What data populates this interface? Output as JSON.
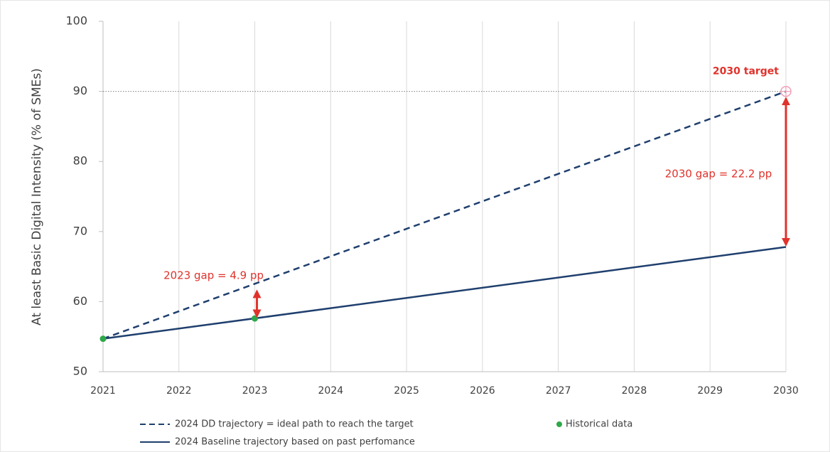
{
  "chart_data": {
    "type": "line",
    "y_label": "At least Basic Digital Intensity (% of SMEs)",
    "xlim": [
      2021,
      2030
    ],
    "xticks": [
      2021,
      2022,
      2023,
      2024,
      2025,
      2026,
      2027,
      2028,
      2029,
      2030
    ],
    "ylim": [
      50,
      100
    ],
    "yticks": [
      50,
      60,
      70,
      80,
      90,
      100
    ],
    "grid": "x",
    "series": [
      {
        "name": "2024 DD trajectory = ideal path to reach the target",
        "color": "#1f3f6e",
        "style": "dashed",
        "x": [
          2021,
          2030
        ],
        "values": [
          54.7,
          90
        ]
      },
      {
        "name": "2024 Baseline trajectory based on past perfomance",
        "color": "#1f3f6e",
        "style": "solid",
        "x": [
          2021,
          2030
        ],
        "values": [
          54.7,
          67.8
        ]
      },
      {
        "name": "Historical data",
        "color": "#2ea84a",
        "style": "markers",
        "x": [
          2021,
          2023
        ],
        "values": [
          54.7,
          57.6
        ]
      }
    ],
    "target": {
      "label": "2030 target",
      "x": 2030,
      "value": 90,
      "color": "#e0322b"
    },
    "annotations": [
      {
        "text": "2023 gap = 4.9 pp",
        "x": 2023,
        "from": 57.6,
        "to": 62.5,
        "color": "#e0322b"
      },
      {
        "text": "2030 gap = 22.2 pp",
        "x": 2030,
        "from": 67.8,
        "to": 90,
        "color": "#e0322b"
      }
    ]
  }
}
